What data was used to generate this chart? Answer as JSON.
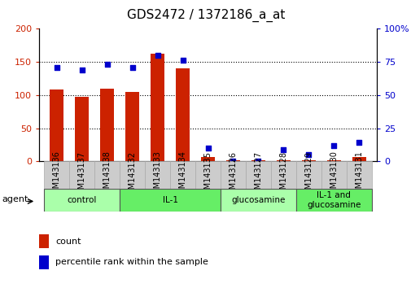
{
  "title": "GDS2472 / 1372186_a_at",
  "samples": [
    "GSM143136",
    "GSM143137",
    "GSM143138",
    "GSM143132",
    "GSM143133",
    "GSM143134",
    "GSM143135",
    "GSM143126",
    "GSM143127",
    "GSM143128",
    "GSM143129",
    "GSM143130",
    "GSM143131"
  ],
  "counts": [
    108,
    97,
    110,
    105,
    163,
    140,
    6,
    1,
    1,
    2,
    2,
    1,
    7
  ],
  "percentiles": [
    71,
    69,
    73,
    71,
    80,
    76,
    10,
    0,
    0,
    9,
    5,
    12,
    14
  ],
  "groups": [
    {
      "label": "control",
      "indices": [
        0,
        1,
        2
      ],
      "color": "#aaffaa"
    },
    {
      "label": "IL-1",
      "indices": [
        3,
        4,
        5,
        6
      ],
      "color": "#66ee66"
    },
    {
      "label": "glucosamine",
      "indices": [
        7,
        8,
        9
      ],
      "color": "#aaffaa"
    },
    {
      "label": "IL-1 and\nglucosamine",
      "indices": [
        10,
        11,
        12
      ],
      "color": "#66ee66"
    }
  ],
  "bar_color": "#cc2200",
  "dot_color": "#0000cc",
  "left_ylim": [
    0,
    200
  ],
  "right_ylim": [
    0,
    100
  ],
  "left_yticks": [
    0,
    50,
    100,
    150,
    200
  ],
  "right_yticks": [
    0,
    25,
    50,
    75,
    100
  ],
  "right_yticklabels": [
    "0",
    "25",
    "50",
    "75",
    "100%"
  ],
  "grid_values": [
    50,
    100,
    150
  ],
  "agent_label": "agent",
  "legend_count": "count",
  "legend_percentile": "percentile rank within the sample",
  "title_fontsize": 11,
  "tick_fontsize": 7,
  "bar_width": 0.55,
  "xlabel_box_color": "#cccccc",
  "xlabel_box_edge": "#aaaaaa"
}
